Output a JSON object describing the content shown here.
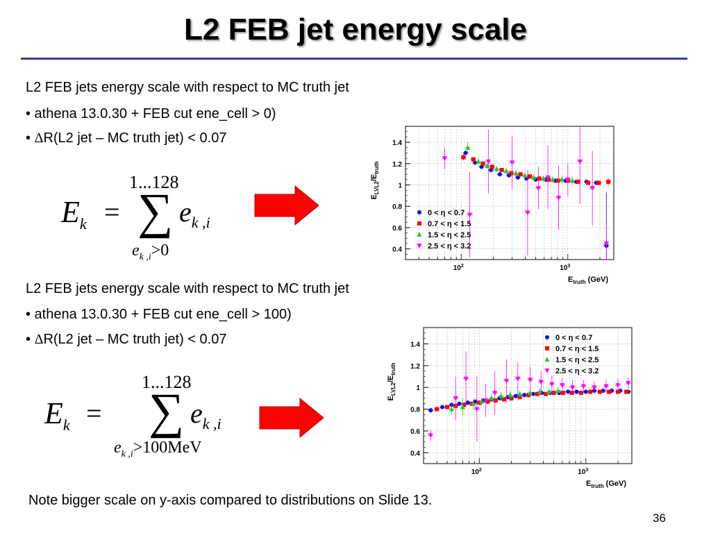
{
  "slide": {
    "title": "L2 FEB jet energy scale",
    "block1": {
      "heading": "L2 FEB jets energy scale with respect to MC truth jet",
      "bullet1": "• athena 13.0.30 + FEB cut ene_cell > 0)",
      "bullet2_prefix": "• ",
      "bullet2_delta": "Δ",
      "bullet2_rest": "R(L2 jet – MC truth jet) < 0.07",
      "eq_upper": "1...128",
      "eq_lhs": "E",
      "eq_lhs_sub": "k",
      "eq_eq": "=",
      "eq_sigma": "∑",
      "eq_term": "e",
      "eq_term_sub": "k ,i",
      "eq_lower_e": "e",
      "eq_lower_sub": "k ,i",
      "eq_lower_cond": ">0"
    },
    "block2": {
      "heading": "L2 FEB jets energy scale with respect to MC truth jet",
      "bullet1": "• athena 13.0.30 + FEB cut ene_cell > 100)",
      "bullet2_prefix": "• ",
      "bullet2_delta": "Δ",
      "bullet2_rest": "R(L2 jet – MC truth jet) < 0.07",
      "eq_upper": "1...128",
      "eq_lhs": "E",
      "eq_lhs_sub": "k",
      "eq_eq": "=",
      "eq_sigma": "∑",
      "eq_term": "e",
      "eq_term_sub": "k ,i",
      "eq_lower_e": "e",
      "eq_lower_sub": "k ,i",
      "eq_lower_cond": ">100MeV"
    },
    "note": "Note bigger scale on y-axis compared to distributions on Slide 13.",
    "page_number": "36",
    "arrow_color": "#ff0000"
  },
  "chart_data": [
    {
      "type": "scatter",
      "xlog": true,
      "xlim": [
        30,
        2700
      ],
      "ylim": [
        0.3,
        1.55
      ],
      "yticks": [
        "0.4",
        "0.6",
        "0.8",
        "1",
        "1.2",
        "1.4"
      ],
      "xticks": [
        {
          "v": 100,
          "label": "10",
          "sup": "2"
        },
        {
          "v": 1000,
          "label": "10",
          "sup": "3"
        }
      ],
      "ylabel": "E",
      "ylabel_sub": "LVL2",
      "ylabel_mid": "/E",
      "ylabel_sub2": "truth",
      "xlabel": "E",
      "xlabel_sub": "truth",
      "xlabel_rest": " (GeV)",
      "legend_position": "bottom-left",
      "grid": true,
      "series": [
        {
          "name": "0 < η < 0.7",
          "color": "#0000ff",
          "marker": "circle",
          "x": [
            110,
            135,
            155,
            190,
            230,
            280,
            340,
            410,
            500,
            620,
            760,
            950,
            1200,
            1500,
            1850,
            2300
          ],
          "y": [
            1.3,
            1.21,
            1.17,
            1.14,
            1.1,
            1.09,
            1.07,
            1.06,
            1.05,
            1.05,
            1.04,
            1.04,
            1.03,
            1.03,
            1.02,
            0.43
          ],
          "err": [
            0.02,
            0.02,
            0.02,
            0.02,
            0.02,
            0.02,
            0.02,
            0.02,
            0.02,
            0.02,
            0.02,
            0.02,
            0.02,
            0.02,
            0.02,
            0.5
          ]
        },
        {
          "name": "0.7 < η < 1.5",
          "color": "#ff0000",
          "marker": "square",
          "x": [
            105,
            130,
            160,
            195,
            240,
            295,
            360,
            440,
            540,
            660,
            810,
            1000,
            1250,
            1550,
            1950,
            2400
          ],
          "y": [
            1.26,
            1.24,
            1.2,
            1.17,
            1.14,
            1.11,
            1.1,
            1.08,
            1.06,
            1.05,
            1.04,
            1.04,
            1.03,
            1.02,
            1.02,
            1.03
          ],
          "err": [
            0.03,
            0.02,
            0.02,
            0.02,
            0.02,
            0.02,
            0.02,
            0.02,
            0.02,
            0.02,
            0.02,
            0.02,
            0.02,
            0.02,
            0.02,
            0.03
          ]
        },
        {
          "name": "1.5 < η < 2.5",
          "color": "#22cc22",
          "marker": "triangle-up",
          "x": [
            115,
            145,
            175,
            215,
            265,
            325,
            395,
            480,
            590,
            720,
            880,
            1100
          ],
          "y": [
            1.35,
            1.22,
            1.18,
            1.15,
            1.13,
            1.11,
            1.09,
            1.07,
            1.06,
            1.05,
            1.05,
            1.04
          ],
          "err": [
            0.05,
            0.04,
            0.03,
            0.03,
            0.03,
            0.03,
            0.03,
            0.03,
            0.03,
            0.03,
            0.04,
            0.04
          ]
        },
        {
          "name": "2.5 < η < 3.2",
          "color": "#ff00ff",
          "marker": "triangle-down",
          "x": [
            70,
            120,
            180,
            300,
            420,
            530,
            650,
            820,
            1000,
            1300,
            1700,
            2300
          ],
          "y": [
            1.25,
            0.72,
            1.22,
            1.21,
            0.74,
            0.97,
            1.07,
            0.88,
            1.05,
            1.22,
            0.97,
            0.45
          ],
          "err": [
            0.1,
            0.4,
            0.3,
            0.25,
            0.4,
            0.2,
            0.3,
            0.3,
            0.15,
            0.4,
            0.35,
            0.2
          ]
        }
      ]
    },
    {
      "type": "scatter",
      "xlog": true,
      "xlim": [
        30,
        2700
      ],
      "ylim": [
        0.3,
        1.55
      ],
      "yticks": [
        "0.4",
        "0.6",
        "0.8",
        "1",
        "1.2",
        "1.4"
      ],
      "xticks": [
        {
          "v": 100,
          "label": "10",
          "sup": "2"
        },
        {
          "v": 1000,
          "label": "10",
          "sup": "3"
        }
      ],
      "ylabel": "E",
      "ylabel_sub": "LVL2",
      "ylabel_mid": "/E",
      "ylabel_sub2": "truth",
      "xlabel": "E",
      "xlabel_sub": "truth",
      "xlabel_rest": " (GeV)",
      "legend_position": "top-right",
      "grid": true,
      "series": [
        {
          "name": "0 < η < 0.7",
          "color": "#0000ff",
          "marker": "circle",
          "x": [
            35,
            45,
            55,
            65,
            78,
            92,
            110,
            130,
            155,
            185,
            220,
            265,
            320,
            385,
            460,
            560,
            680,
            820,
            1000,
            1200,
            1450,
            1750,
            2100,
            2500
          ],
          "y": [
            0.79,
            0.82,
            0.84,
            0.85,
            0.86,
            0.87,
            0.88,
            0.89,
            0.9,
            0.91,
            0.92,
            0.93,
            0.94,
            0.95,
            0.95,
            0.95,
            0.96,
            0.96,
            0.96,
            0.97,
            0.97,
            0.97,
            0.97,
            0.96
          ],
          "err": [
            0.02,
            0.02,
            0.02,
            0.02,
            0.02,
            0.02,
            0.02,
            0.02,
            0.02,
            0.02,
            0.02,
            0.02,
            0.02,
            0.02,
            0.02,
            0.02,
            0.02,
            0.02,
            0.02,
            0.02,
            0.02,
            0.02,
            0.02,
            0.02
          ]
        },
        {
          "name": "0.7 < η < 1.5",
          "color": "#ff0000",
          "marker": "square",
          "x": [
            40,
            50,
            60,
            72,
            85,
            100,
            120,
            142,
            170,
            200,
            240,
            290,
            350,
            420,
            500,
            610,
            740,
            900,
            1100,
            1350,
            1650,
            2000,
            2400
          ],
          "y": [
            0.8,
            0.82,
            0.83,
            0.84,
            0.85,
            0.86,
            0.87,
            0.88,
            0.89,
            0.9,
            0.91,
            0.93,
            0.94,
            0.94,
            0.95,
            0.95,
            0.95,
            0.95,
            0.96,
            0.96,
            0.96,
            0.96,
            0.96
          ],
          "err": [
            0.02,
            0.02,
            0.02,
            0.02,
            0.02,
            0.02,
            0.02,
            0.02,
            0.02,
            0.02,
            0.02,
            0.02,
            0.02,
            0.02,
            0.02,
            0.02,
            0.02,
            0.02,
            0.02,
            0.02,
            0.02,
            0.02,
            0.02
          ]
        },
        {
          "name": "1.5 < η < 2.5",
          "color": "#22cc22",
          "marker": "triangle-up",
          "x": [
            55,
            70,
            88,
            105,
            130,
            160,
            195,
            240,
            300,
            370,
            450,
            550
          ],
          "y": [
            0.8,
            0.82,
            0.85,
            0.87,
            0.9,
            0.92,
            0.93,
            0.94,
            0.95,
            0.96,
            0.96,
            0.97
          ],
          "err": [
            0.05,
            0.08,
            0.05,
            0.04,
            0.04,
            0.04,
            0.04,
            0.03,
            0.03,
            0.03,
            0.03,
            0.03
          ]
        },
        {
          "name": "2.5 < η < 3.2",
          "color": "#ff00ff",
          "marker": "triangle-down",
          "x": [
            35,
            60,
            75,
            95,
            115,
            140,
            180,
            230,
            300,
            380,
            480,
            600,
            750,
            950,
            1200,
            1550,
            2000,
            2500
          ],
          "y": [
            0.56,
            0.9,
            1.08,
            0.8,
            0.88,
            0.95,
            1.06,
            1.08,
            1.07,
            1.05,
            1.03,
            1.02,
            1.0,
            1.01,
            1.0,
            1.01,
            1.02,
            1.04
          ],
          "err": [
            0.05,
            0.2,
            0.25,
            0.3,
            0.15,
            0.2,
            0.2,
            0.15,
            0.12,
            0.1,
            0.08,
            0.07,
            0.07,
            0.06,
            0.06,
            0.06,
            0.06,
            0.05
          ]
        }
      ]
    }
  ]
}
